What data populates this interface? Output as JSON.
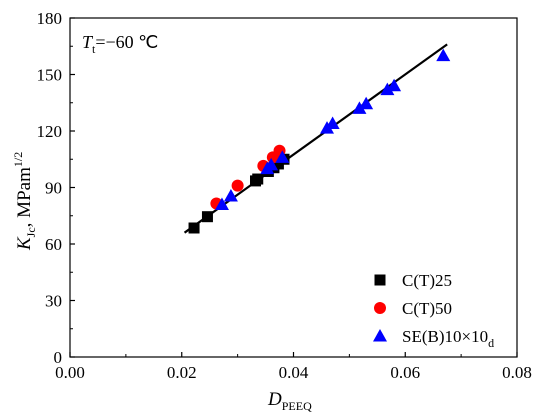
{
  "chart_data": {
    "type": "scatter",
    "annotation": {
      "main": "T",
      "sub": "t",
      "rest": "=−60 ℃"
    },
    "xlabel": {
      "main": "D",
      "sub": "PEEQ"
    },
    "ylabel": {
      "main": "K",
      "sub": "Jc",
      "rest": ", MPam",
      "sup": "1/2"
    },
    "xlim": [
      0.0,
      0.08
    ],
    "ylim": [
      0,
      180
    ],
    "xticks": [
      "0.00",
      "0.02",
      "0.04",
      "0.06",
      "0.08"
    ],
    "yticks": [
      "0",
      "30",
      "60",
      "90",
      "120",
      "150",
      "180"
    ],
    "grid": false,
    "legend_position": "bottom-right",
    "fit_line": {
      "x": [
        0.0205,
        0.0675
      ],
      "y": [
        66,
        166
      ],
      "color": "#000000"
    },
    "series": [
      {
        "name": "C(T)25",
        "name_sub": "",
        "marker": "square",
        "color": "#000000",
        "points": [
          [
            0.0222,
            68.5
          ],
          [
            0.0246,
            74.5
          ],
          [
            0.0332,
            93.5
          ],
          [
            0.0336,
            94.5
          ],
          [
            0.0355,
            98.5
          ],
          [
            0.0365,
            100.5
          ],
          [
            0.0373,
            102.5
          ],
          [
            0.0383,
            105.0
          ]
        ]
      },
      {
        "name": "C(T)50",
        "name_sub": "",
        "marker": "circle",
        "color": "#ff0000",
        "points": [
          [
            0.0262,
            81.5
          ],
          [
            0.03,
            91.0
          ],
          [
            0.0346,
            101.5
          ],
          [
            0.0363,
            106.0
          ],
          [
            0.0375,
            109.5
          ]
        ]
      },
      {
        "name": "SE(B)10×10",
        "name_sub": "d",
        "marker": "triangle",
        "color": "#0000ff",
        "points": [
          [
            0.0272,
            81.0
          ],
          [
            0.0288,
            85.5
          ],
          [
            0.0353,
            100.0
          ],
          [
            0.036,
            102.0
          ],
          [
            0.038,
            106.0
          ],
          [
            0.046,
            121.5
          ],
          [
            0.047,
            124.0
          ],
          [
            0.0518,
            132.0
          ],
          [
            0.053,
            134.5
          ],
          [
            0.0568,
            142.0
          ],
          [
            0.058,
            144.0
          ],
          [
            0.0668,
            160.0
          ]
        ]
      }
    ]
  }
}
